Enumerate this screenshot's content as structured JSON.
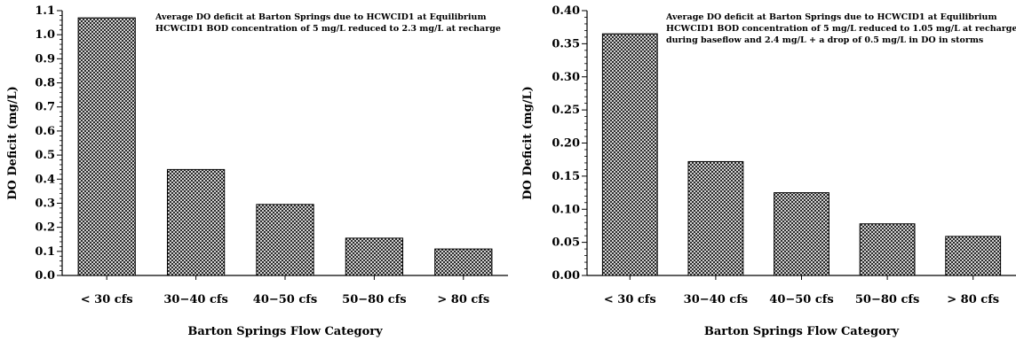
{
  "chart_data": [
    {
      "type": "bar",
      "categories": [
        "< 30 cfs",
        "30−40 cfs",
        "40−50 cfs",
        "50−80 cfs",
        "> 80 cfs"
      ],
      "values": [
        1.07,
        0.44,
        0.295,
        0.155,
        0.11
      ],
      "ylabel": "DO Deficit (mg/L)",
      "xlabel": "Barton Springs Flow Category",
      "ylim": [
        0,
        1.1
      ],
      "yticks": [
        "0.0",
        "0.1",
        "0.2",
        "0.3",
        "0.4",
        "0.5",
        "0.6",
        "0.7",
        "0.8",
        "0.9",
        "1.0",
        "1.1"
      ],
      "ytick_values": [
        0,
        0.1,
        0.2,
        0.3,
        0.4,
        0.5,
        0.6,
        0.7,
        0.8,
        0.9,
        1.0,
        1.1
      ],
      "annotations": [
        "Average DO deficit at Barton Springs due to HCWCID1 at Equilibrium",
        "HCWCID1 BOD concentration of 5 mg/L reduced to 2.3 mg/L at recharge"
      ],
      "bar_fill": "crosshatch",
      "grid": false
    },
    {
      "type": "bar",
      "categories": [
        "< 30 cfs",
        "30−40 cfs",
        "40−50 cfs",
        "50−80 cfs",
        "> 80 cfs"
      ],
      "values": [
        0.365,
        0.172,
        0.125,
        0.078,
        0.059
      ],
      "ylabel": "DO Deficit (mg/L)",
      "xlabel": "Barton Springs Flow Category",
      "ylim": [
        0,
        0.4
      ],
      "yticks": [
        "0.00",
        "0.05",
        "0.10",
        "0.15",
        "0.20",
        "0.25",
        "0.30",
        "0.35",
        "0.40"
      ],
      "ytick_values": [
        0,
        0.05,
        0.1,
        0.15,
        0.2,
        0.25,
        0.3,
        0.35,
        0.4
      ],
      "annotations": [
        "Average DO deficit at Barton Springs due to HCWCID1 at Equilibrium",
        "HCWCID1 BOD concentration of 5 mg/L reduced to 1.05 mg/L at recharge",
        "during baseflow and 2.4 mg/L + a drop of 0.5 mg/L in DO in storms"
      ],
      "bar_fill": "crosshatch",
      "grid": false
    }
  ]
}
